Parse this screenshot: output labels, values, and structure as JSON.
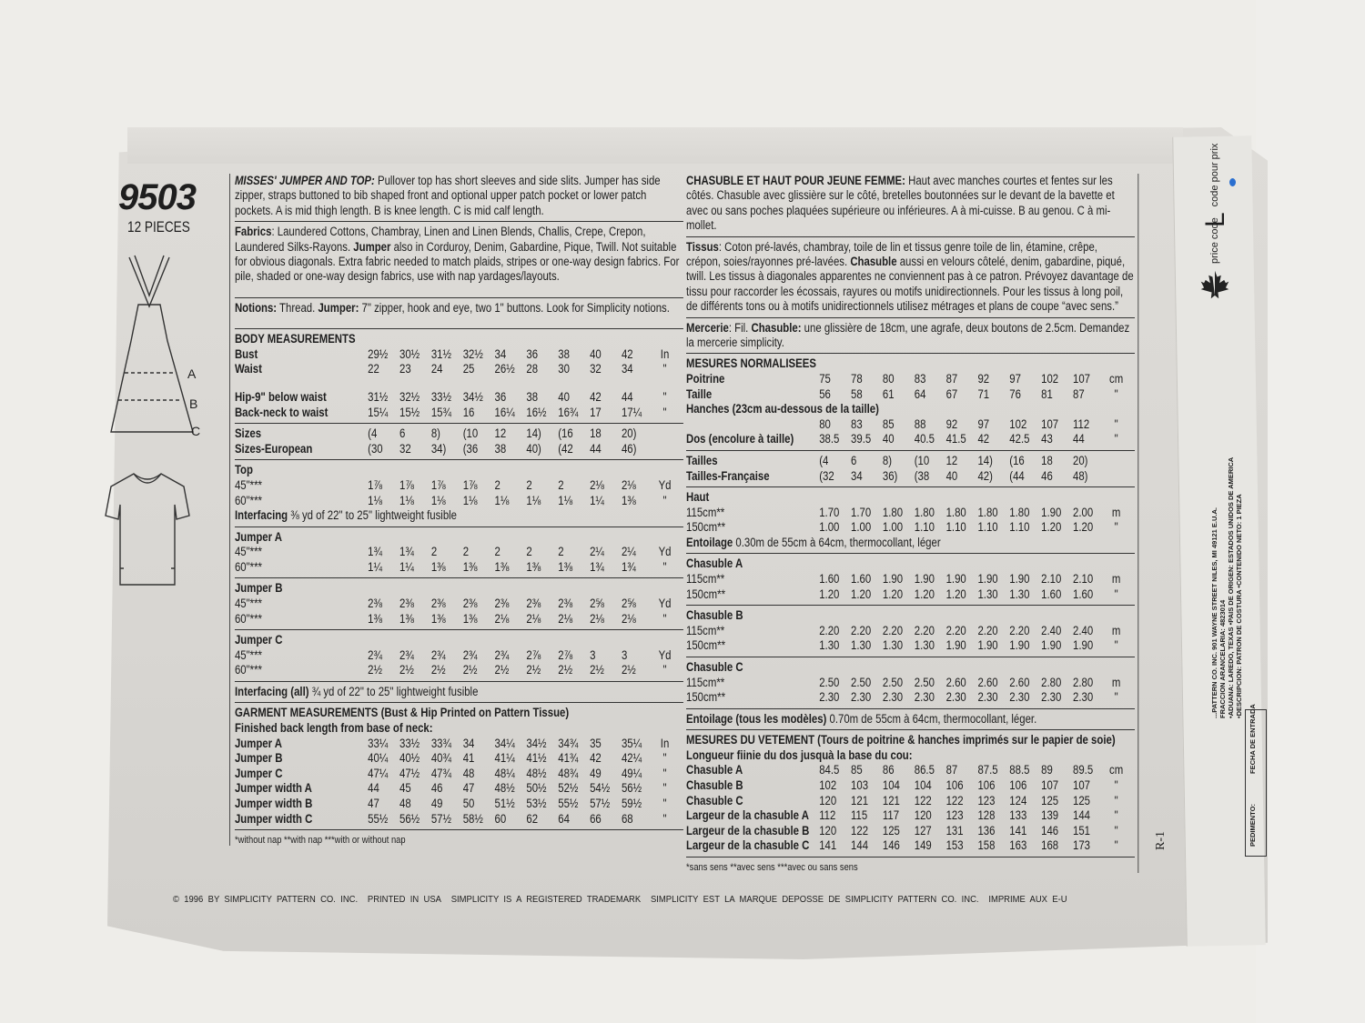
{
  "header": {
    "pattern_number": "9503",
    "pieces": "12 PIECES"
  },
  "views": [
    "A",
    "B",
    "C"
  ],
  "left": {
    "description": [
      {
        "b": true,
        "i": true,
        "t": "MISSES' JUMPER AND TOP: "
      },
      {
        "t": "Pullover top has short sleeves and side slits. Jumper has side zipper, straps buttoned to bib shaped front and optional upper patch pocket or lower patch pockets. A is mid thigh length. B is knee length. C is mid calf length."
      }
    ],
    "fabrics": [
      {
        "b": true,
        "t": "Fabrics"
      },
      {
        "t": ": Laundered Cottons, Chambray, Linen and Linen Blends, Challis, Crepe, Crepon, Laundered Silks-Rayons. "
      },
      {
        "b": true,
        "t": "Jumper"
      },
      {
        "t": " also in Corduroy, Denim, Gabardine, Pique, Twill. Not suitable for obvious diagonals. Extra fabric needed to match plaids, stripes or one-way design fabrics. For pile, shaded or one-way design fabrics, use with nap yardages/layouts."
      }
    ],
    "notions": [
      {
        "b": true,
        "t": "Notions:"
      },
      {
        "t": " Thread. "
      },
      {
        "b": true,
        "t": "Jumper:"
      },
      {
        "t": " 7\" zipper, hook and eye, two 1\" buttons. Look for Simplicity notions."
      }
    ],
    "blocks": [
      {
        "title": "BODY MEASUREMENTS",
        "rows": [
          {
            "label": "Bust",
            "values": [
              "29½",
              "30½",
              "31½",
              "32½",
              "34",
              "36",
              "38",
              "40",
              "42"
            ],
            "unit": "In"
          },
          {
            "label": "Waist",
            "values": [
              "22",
              "23",
              "24",
              "25",
              "26½",
              "28",
              "30",
              "32",
              "34"
            ],
            "unit": "\""
          },
          {
            "spacer": true
          },
          {
            "label": "Hip-9\" below waist",
            "values": [
              "31½",
              "32½",
              "33½",
              "34½",
              "36",
              "38",
              "40",
              "42",
              "44"
            ],
            "unit": "\""
          },
          {
            "label": "Back-neck to waist",
            "values": [
              "15¼",
              "15½",
              "15¾",
              "16",
              "16¼",
              "16½",
              "16¾",
              "17",
              "17¼"
            ],
            "unit": "\""
          }
        ]
      },
      {
        "rows": [
          {
            "label": "Sizes",
            "values": [
              "(4",
              "6",
              "8)",
              "(10",
              "12",
              "14)",
              "(16",
              "18",
              "20)"
            ],
            "unit": ""
          },
          {
            "label": "Sizes-European",
            "values": [
              "(30",
              "32",
              "34)",
              "(36",
              "38",
              "40)",
              "(42",
              "44",
              "46)"
            ],
            "unit": ""
          }
        ]
      },
      {
        "title": "Top",
        "rows": [
          {
            "label": "45\"***",
            "light": true,
            "values": [
              "1⅞",
              "1⅞",
              "1⅞",
              "1⅞",
              "2",
              "2",
              "2",
              "2⅛",
              "2⅛"
            ],
            "unit": "Yd"
          },
          {
            "label": "60\"***",
            "light": true,
            "values": [
              "1⅛",
              "1⅛",
              "1⅛",
              "1⅛",
              "1⅛",
              "1⅛",
              "1⅛",
              "1¼",
              "1⅜"
            ],
            "unit": "\""
          }
        ],
        "note": [
          {
            "b": true,
            "t": "Interfacing"
          },
          {
            "t": " ⅜ yd of 22\" to 25\" lightweight fusible"
          }
        ]
      },
      {
        "title": "Jumper A",
        "rows": [
          {
            "label": "45\"***",
            "light": true,
            "values": [
              "1¾",
              "1¾",
              "2",
              "2",
              "2",
              "2",
              "2",
              "2¼",
              "2¼"
            ],
            "unit": "Yd"
          },
          {
            "label": "60\"***",
            "light": true,
            "values": [
              "1¼",
              "1¼",
              "1⅜",
              "1⅜",
              "1⅜",
              "1⅜",
              "1⅜",
              "1¾",
              "1¾"
            ],
            "unit": "\""
          }
        ]
      },
      {
        "title": "Jumper B",
        "rows": [
          {
            "label": "45\"***",
            "light": true,
            "values": [
              "2⅜",
              "2⅜",
              "2⅜",
              "2⅜",
              "2⅜",
              "2⅜",
              "2⅜",
              "2⅝",
              "2⅝"
            ],
            "unit": "Yd"
          },
          {
            "label": "60\"***",
            "light": true,
            "values": [
              "1⅜",
              "1⅜",
              "1⅜",
              "1⅜",
              "2⅛",
              "2⅛",
              "2⅛",
              "2⅛",
              "2⅛"
            ],
            "unit": "\""
          }
        ]
      },
      {
        "title": "Jumper C",
        "rows": [
          {
            "label": "45\"***",
            "light": true,
            "values": [
              "2¾",
              "2¾",
              "2¾",
              "2¾",
              "2¾",
              "2⅞",
              "2⅞",
              "3",
              "3"
            ],
            "unit": "Yd"
          },
          {
            "label": "60\"***",
            "light": true,
            "values": [
              "2½",
              "2½",
              "2½",
              "2½",
              "2½",
              "2½",
              "2½",
              "2½",
              "2½"
            ],
            "unit": "\""
          }
        ]
      },
      {
        "textline": [
          {
            "b": true,
            "t": "Interfacing (all)"
          },
          {
            "t": " ¾ yd of 22\" to 25\" lightweight fusible"
          }
        ]
      },
      {
        "title": "GARMENT MEASUREMENTS (Bust & Hip Printed on Pattern Tissue)",
        "subtitle": "Finished back length from base of neck:",
        "rows": [
          {
            "label": "Jumper A",
            "values": [
              "33¼",
              "33½",
              "33¾",
              "34",
              "34¼",
              "34½",
              "34¾",
              "35",
              "35¼"
            ],
            "unit": "In"
          },
          {
            "label": "Jumper B",
            "values": [
              "40¼",
              "40½",
              "40¾",
              "41",
              "41¼",
              "41½",
              "41¾",
              "42",
              "42¼"
            ],
            "unit": "\""
          },
          {
            "label": "Jumper C",
            "values": [
              "47¼",
              "47½",
              "47¾",
              "48",
              "48¼",
              "48½",
              "48¾",
              "49",
              "49¼"
            ],
            "unit": "\""
          },
          {
            "label": "Jumper width A",
            "values": [
              "44",
              "45",
              "46",
              "47",
              "48½",
              "50½",
              "52½",
              "54½",
              "56½"
            ],
            "unit": "\""
          },
          {
            "label": "Jumper width B",
            "values": [
              "47",
              "48",
              "49",
              "50",
              "51½",
              "53½",
              "55½",
              "57½",
              "59½"
            ],
            "unit": "\""
          },
          {
            "label": "Jumper width C",
            "values": [
              "55½",
              "56½",
              "57½",
              "58½",
              "60",
              "62",
              "64",
              "66",
              "68"
            ],
            "unit": "\""
          }
        ]
      }
    ],
    "footnote": "*without nap     **with nap     ***with or without nap"
  },
  "right": {
    "description": [
      {
        "b": true,
        "t": "CHASUBLE ET HAUT POUR JEUNE FEMME: "
      },
      {
        "t": "Haut avec manches courtes et fentes sur les côtés. Chasuble avec glissière sur le côté, bretelles boutonnées sur le devant de la bavette et avec ou sans poches plaquées supérieure ou inférieures. A à mi-cuisse. B au genou. C à mi-mollet."
      }
    ],
    "fabrics": [
      {
        "b": true,
        "t": "Tissus"
      },
      {
        "t": ": Coton pré-lavés, chambray, toile de lin et tissus genre toile de lin, étamine, crêpe, crépon, soies/rayonnes pré-lavées. "
      },
      {
        "b": true,
        "t": "Chasuble"
      },
      {
        "t": " aussi en velours côtelé, denim, gabardine, piqué, twill. Les tissus à diagonales apparentes ne conviennent pas à ce patron. Prévoyez davantage de tissu pour raccorder les écossais, rayures ou motifs unidirectionnels. Pour les tissus à long poil, de différents tons ou à motifs unidirectionnels utilisez métrages et plans de coupe “avec sens.”"
      }
    ],
    "notions": [
      {
        "b": true,
        "t": "Mercerie"
      },
      {
        "t": ": Fil. "
      },
      {
        "b": true,
        "t": "Chasuble:"
      },
      {
        "t": " une glissière de 18cm, une agrafe, deux boutons de 2.5cm. Demandez la mercerie simplicity."
      }
    ],
    "blocks": [
      {
        "title": "MESURES NORMALISEES",
        "rows": [
          {
            "label": "Poitrine",
            "values": [
              "75",
              "78",
              "80",
              "83",
              "87",
              "92",
              "97",
              "102",
              "107"
            ],
            "unit": "cm"
          },
          {
            "label": "Taille",
            "values": [
              "56",
              "58",
              "61",
              "64",
              "67",
              "71",
              "76",
              "81",
              "87"
            ],
            "unit": "\""
          },
          {
            "label": "Hanches (23cm au-dessous de la taille)",
            "wide": true
          },
          {
            "label": "",
            "values": [
              "80",
              "83",
              "85",
              "88",
              "92",
              "97",
              "102",
              "107",
              "112"
            ],
            "unit": "\""
          },
          {
            "label": "Dos (encolure à taille)",
            "values": [
              "38.5",
              "39.5",
              "40",
              "40.5",
              "41.5",
              "42",
              "42.5",
              "43",
              "44"
            ],
            "unit": "\""
          }
        ]
      },
      {
        "rows": [
          {
            "label": "Tailles",
            "values": [
              "(4",
              "6",
              "8)",
              "(10",
              "12",
              "14)",
              "(16",
              "18",
              "20)"
            ],
            "unit": ""
          },
          {
            "label": "Tailles-Française",
            "values": [
              "(32",
              "34",
              "36)",
              "(38",
              "40",
              "42)",
              "(44",
              "46",
              "48)"
            ],
            "unit": ""
          }
        ]
      },
      {
        "title": "Haut",
        "rows": [
          {
            "label": "115cm**",
            "light": true,
            "values": [
              "1.70",
              "1.70",
              "1.80",
              "1.80",
              "1.80",
              "1.80",
              "1.80",
              "1.90",
              "2.00"
            ],
            "unit": "m"
          },
          {
            "label": "150cm**",
            "light": true,
            "values": [
              "1.00",
              "1.00",
              "1.00",
              "1.10",
              "1.10",
              "1.10",
              "1.10",
              "1.20",
              "1.20"
            ],
            "unit": "\""
          }
        ],
        "note": [
          {
            "b": true,
            "t": "Entoilage"
          },
          {
            "t": " 0.30m de 55cm à 64cm, thermocollant, léger"
          }
        ]
      },
      {
        "title": "Chasuble A",
        "rows": [
          {
            "label": "115cm**",
            "light": true,
            "values": [
              "1.60",
              "1.60",
              "1.90",
              "1.90",
              "1.90",
              "1.90",
              "1.90",
              "2.10",
              "2.10"
            ],
            "unit": "m"
          },
          {
            "label": "150cm**",
            "light": true,
            "values": [
              "1.20",
              "1.20",
              "1.20",
              "1.20",
              "1.20",
              "1.30",
              "1.30",
              "1.60",
              "1.60"
            ],
            "unit": "\""
          }
        ]
      },
      {
        "title": "Chasuble B",
        "rows": [
          {
            "label": "115cm**",
            "light": true,
            "values": [
              "2.20",
              "2.20",
              "2.20",
              "2.20",
              "2.20",
              "2.20",
              "2.20",
              "2.40",
              "2.40"
            ],
            "unit": "m"
          },
          {
            "label": "150cm**",
            "light": true,
            "values": [
              "1.30",
              "1.30",
              "1.30",
              "1.30",
              "1.90",
              "1.90",
              "1.90",
              "1.90",
              "1.90"
            ],
            "unit": "\""
          }
        ]
      },
      {
        "title": "Chasuble C",
        "rows": [
          {
            "label": "115cm**",
            "light": true,
            "values": [
              "2.50",
              "2.50",
              "2.50",
              "2.50",
              "2.60",
              "2.60",
              "2.60",
              "2.80",
              "2.80"
            ],
            "unit": "m"
          },
          {
            "label": "150cm**",
            "light": true,
            "values": [
              "2.30",
              "2.30",
              "2.30",
              "2.30",
              "2.30",
              "2.30",
              "2.30",
              "2.30",
              "2.30"
            ],
            "unit": "\""
          }
        ]
      },
      {
        "textline": [
          {
            "b": true,
            "t": "Entoilage (tous les modèles)"
          },
          {
            "t": " 0.70m de 55cm à 64cm, thermocollant, léger."
          }
        ]
      },
      {
        "title": "MESURES DU VETEMENT (Tours de poitrine & hanches imprimés sur le papier de soie)",
        "subtitle": "Longueur fiinie du dos jusquà la base du cou:",
        "rows": [
          {
            "label": "Chasuble A",
            "values": [
              "84.5",
              "85",
              "86",
              "86.5",
              "87",
              "87.5",
              "88.5",
              "89",
              "89.5"
            ],
            "unit": "cm"
          },
          {
            "label": "Chasuble B",
            "values": [
              "102",
              "103",
              "104",
              "104",
              "106",
              "106",
              "106",
              "107",
              "107"
            ],
            "unit": "\""
          },
          {
            "label": "Chasuble C",
            "values": [
              "120",
              "121",
              "121",
              "122",
              "122",
              "123",
              "124",
              "125",
              "125"
            ],
            "unit": "\""
          },
          {
            "label": "Largeur de la chasuble A",
            "values": [
              "112",
              "115",
              "117",
              "120",
              "123",
              "128",
              "133",
              "139",
              "144"
            ],
            "unit": "\""
          },
          {
            "label": "Largeur de la chasuble B",
            "values": [
              "120",
              "122",
              "125",
              "127",
              "131",
              "136",
              "141",
              "146",
              "151"
            ],
            "unit": "\""
          },
          {
            "label": "Largeur de la chasuble C",
            "values": [
              "141",
              "144",
              "146",
              "149",
              "153",
              "158",
              "163",
              "168",
              "173"
            ],
            "unit": "\""
          }
        ]
      }
    ],
    "footnote": "*sans sens     **avec sens     ***avec ou sans sens"
  },
  "footer": [
    "© 1996 BY SIMPLICITY PATTERN CO. INC.",
    "PRINTED IN USA",
    "SIMPLICITY IS A REGISTERED TRADEMARK",
    "SIMPLICITY EST LA MARQUE DEPOSSE DE SIMPLICITY PATTERN CO. INC.",
    "IMPRIME AUX E-U"
  ],
  "price_tag": {
    "price_code": "price code",
    "letter": "L",
    "code_pour_prix": "code pour prix",
    "icon": "maple-leaf-icon"
  },
  "customs": {
    "lines": [
      "...PATTERN CO. INC. 901 WAYNE STREET NILES, MI 49121 E.U.A.",
      "FRACCION ARANCELARIA: 4823014",
      "•ADUANA: LAREDO, TEXAS   •PAIS DE ORIGEN: ESTADOS UNIDOS DE AMERICA",
      "•DESCRIPCION: PATRON DE COSTURA   •CONTENIDO NETO: 1 PIEZA"
    ],
    "pedimento": "PEDIMENTO:",
    "fecha": "FECHA DE ENTRADA"
  },
  "revision": "R-1",
  "colors": {
    "paper": "#dcdad6",
    "ink": "#1e1e1e",
    "dot": "#2a6fd0"
  }
}
